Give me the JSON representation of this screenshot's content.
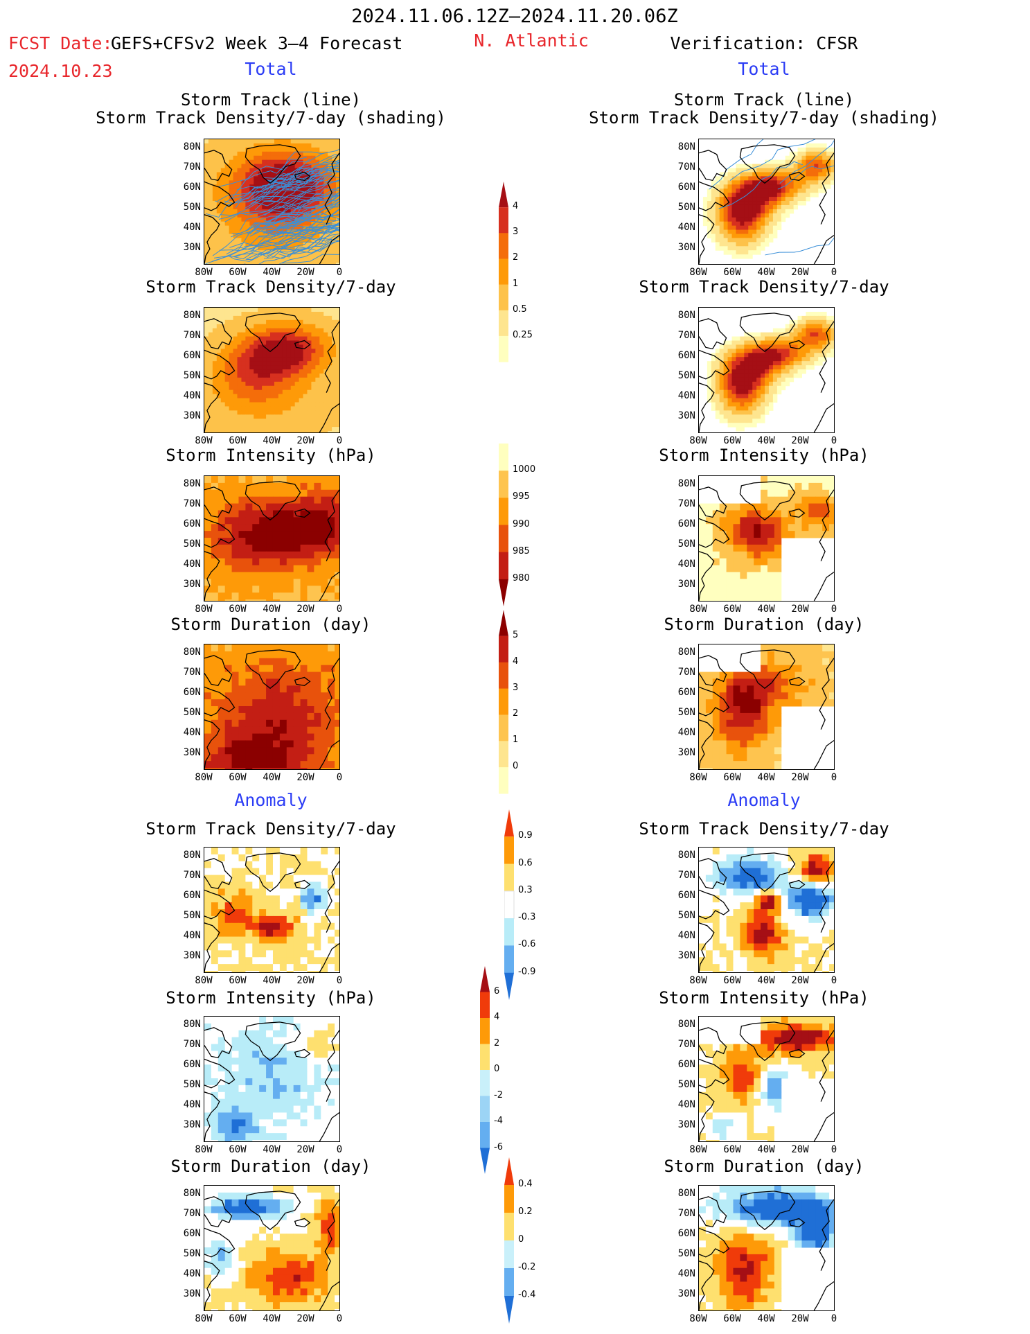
{
  "header": {
    "date_range": "2024.11.06.12Z–2024.11.20.06Z",
    "fcst_label": "FCST Date:",
    "fcst_date": "2024.10.23",
    "forecast_name": "GEFS+CFSv2 Week 3–4 Forecast",
    "region": "N. Atlantic",
    "verification": "Verification: CFSR"
  },
  "sections": {
    "total_left": "Total",
    "total_right": "Total",
    "anomaly_left": "Anomaly",
    "anomaly_right": "Anomaly"
  },
  "panel_titles": {
    "track_line": "Storm Track (line)",
    "track_shading": "Storm Track Density/7-day (shading)",
    "density": "Storm Track Density/7-day",
    "intensity": "Storm Intensity (hPa)",
    "duration": "Storm Duration (day)"
  },
  "axes": {
    "lat_labels": [
      "80N",
      "70N",
      "60N",
      "50N",
      "40N",
      "30N"
    ],
    "lon_labels": [
      "80W",
      "60W",
      "40W",
      "20W",
      "0"
    ]
  },
  "colorbars": {
    "density_total": {
      "labels": [
        "4",
        "3",
        "2",
        "1",
        "0.5",
        "0.25"
      ],
      "colors": [
        "#a50f15",
        "#d7301f",
        "#f46d0a",
        "#fe9a08",
        "#fdc24a",
        "#fee58f",
        "#ffffbf"
      ]
    },
    "intensity_total": {
      "labels": [
        "1000",
        "995",
        "990",
        "985",
        "980"
      ],
      "colors": [
        "#ffffbf",
        "#fec44f",
        "#fe9a08",
        "#e8520c",
        "#c31e14",
        "#8b0000"
      ]
    },
    "duration_total": {
      "labels": [
        "5",
        "4",
        "3",
        "2",
        "1",
        "0"
      ],
      "colors": [
        "#8b0000",
        "#c31e14",
        "#e8520c",
        "#fe9a08",
        "#fec44f",
        "#fee58f",
        "#ffffbf"
      ]
    },
    "density_anom": {
      "labels": [
        "0.9",
        "0.6",
        "0.3",
        "-0.3",
        "-0.6",
        "-0.9"
      ],
      "colors": [
        "#f03b0a",
        "#fe9a08",
        "#fee06f",
        "#ffffff",
        "#b8ecf8",
        "#64aef0",
        "#1f6fd6"
      ]
    },
    "intensity_anom": {
      "labels": [
        "6",
        "4",
        "2",
        "0",
        "-2",
        "-4",
        "-6"
      ],
      "colors": [
        "#a50f15",
        "#f03b0a",
        "#fe9a08",
        "#fee06f",
        "#c9f0fa",
        "#9cd4f5",
        "#64aef0",
        "#1f6fd6"
      ]
    },
    "duration_anom": {
      "labels": [
        "0.4",
        "0.2",
        "0",
        "-0.2",
        "-0.4"
      ],
      "colors": [
        "#f03b0a",
        "#fe9a08",
        "#fee06f",
        "#c9f0fa",
        "#64aef0",
        "#1f6fd6"
      ]
    }
  },
  "legend_colors": {
    "track_line": "#3a8fd8",
    "coast": "#000000"
  }
}
